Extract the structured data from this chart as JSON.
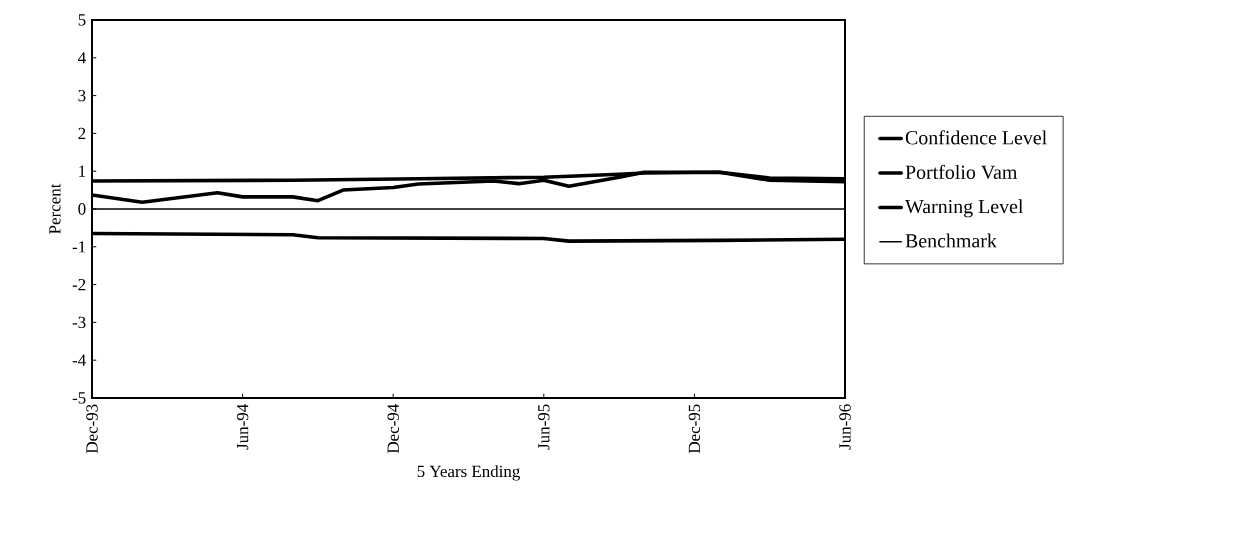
{
  "chart_data": {
    "type": "line",
    "xlabel": "5 Years Ending",
    "ylabel": "Percent",
    "xlim": [
      "1993-12",
      "1996-06"
    ],
    "ylim": [
      -5,
      5
    ],
    "yticks": [
      -5,
      -4,
      -3,
      -2,
      -1,
      0,
      1,
      2,
      3,
      4,
      5
    ],
    "xticks": [
      {
        "value": "1993-12",
        "label": "Dec-93"
      },
      {
        "value": "1994-06",
        "label": "Jun-94"
      },
      {
        "value": "1994-12",
        "label": "Dec-94"
      },
      {
        "value": "1995-06",
        "label": "Jun-95"
      },
      {
        "value": "1995-12",
        "label": "Dec-95"
      },
      {
        "value": "1996-06",
        "label": "Jun-96"
      }
    ],
    "legend": "right",
    "series": [
      {
        "name": "Confidence Level",
        "color": "#000000",
        "x": [
          "1993-12",
          "1994-08",
          "1995-01",
          "1995-06",
          "1995-09",
          "1995-10",
          "1996-01",
          "1996-03",
          "1996-06"
        ],
        "values": [
          0.74,
          0.76,
          0.8,
          0.84,
          0.92,
          0.95,
          0.97,
          0.82,
          0.8
        ]
      },
      {
        "name": "Portfolio Vam",
        "color": "#000000",
        "x": [
          "1993-12",
          "1994-02",
          "1994-05",
          "1994-06",
          "1994-08",
          "1994-09",
          "1994-10",
          "1994-12",
          "1995-01",
          "1995-04",
          "1995-05",
          "1995-06",
          "1995-07",
          "1995-09",
          "1995-10",
          "1996-01",
          "1996-03",
          "1996-06"
        ],
        "values": [
          0.37,
          0.18,
          0.43,
          0.32,
          0.32,
          0.22,
          0.5,
          0.57,
          0.66,
          0.74,
          0.67,
          0.76,
          0.6,
          0.84,
          0.97,
          0.97,
          0.76,
          0.72
        ]
      },
      {
        "name": "Warning Level",
        "color": "#000000",
        "x": [
          "1993-12",
          "1994-08",
          "1994-09",
          "1995-06",
          "1995-07",
          "1996-01",
          "1996-06"
        ],
        "values": [
          -0.65,
          -0.68,
          -0.76,
          -0.78,
          -0.85,
          -0.83,
          -0.8
        ]
      },
      {
        "name": "Benchmark",
        "color": "#000000",
        "x": [
          "1993-12",
          "1996-06"
        ],
        "values": [
          0,
          0
        ]
      }
    ]
  }
}
